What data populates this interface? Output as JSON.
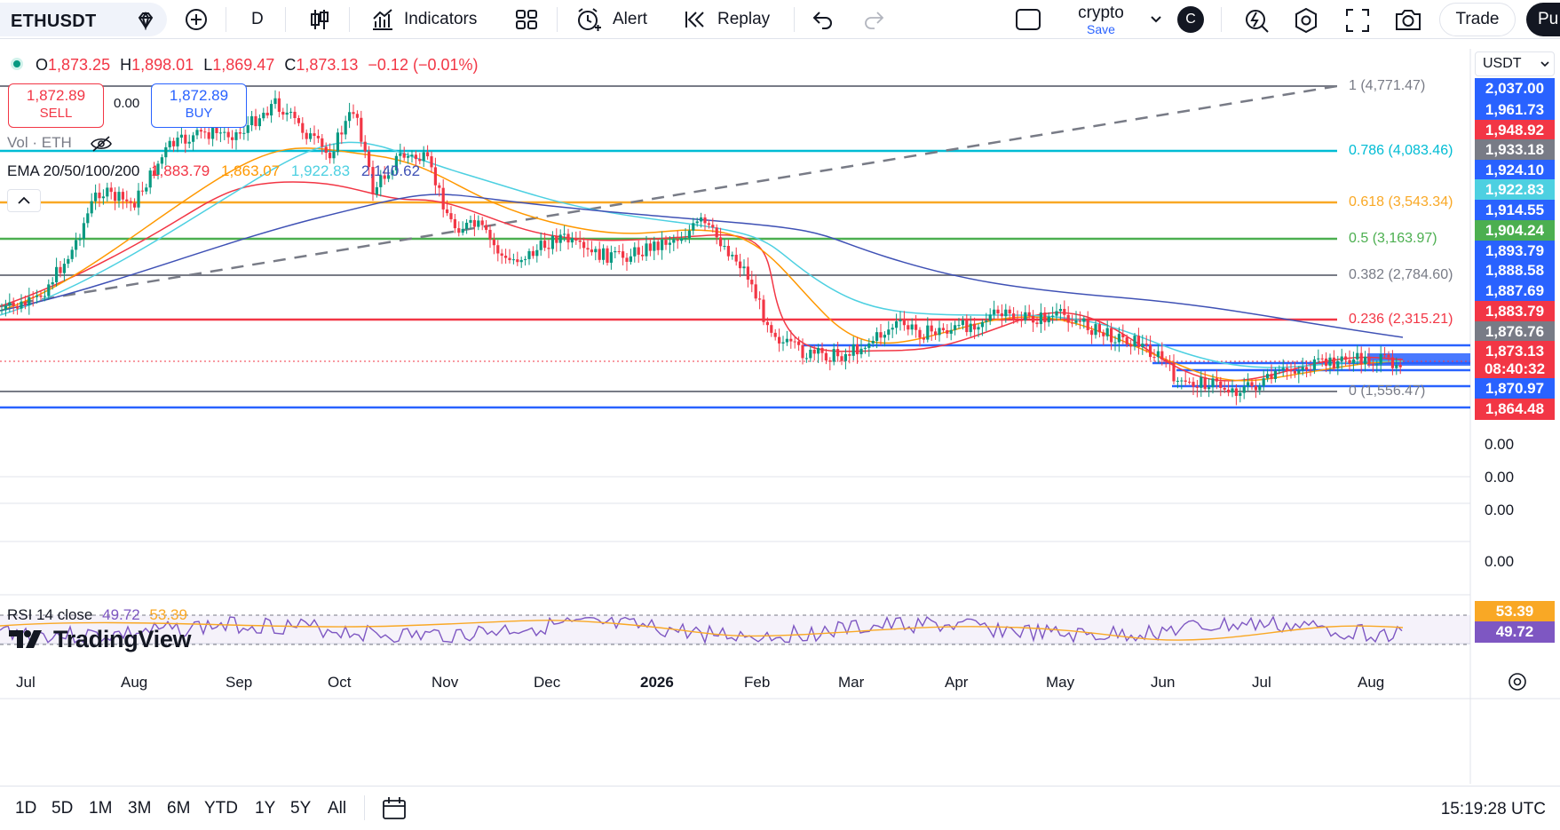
{
  "toolbar": {
    "symbol": "ETHUSDT",
    "interval": "D",
    "indicators_label": "Indicators",
    "alert_label": "Alert",
    "replay_label": "Replay",
    "layout_name": "crypto",
    "layout_save": "Save",
    "avatar_letter": "C",
    "trade_label": "Trade",
    "publish_label": "Pu"
  },
  "legend": {
    "o_key": "O",
    "o_val": "1,873.25",
    "h_key": "H",
    "h_val": "1,898.01",
    "l_key": "L",
    "l_val": "1,869.47",
    "c_key": "C",
    "c_val": "1,873.13",
    "change": "−0.12 (−0.01%)"
  },
  "trade": {
    "sell_price": "1,872.89",
    "sell_label": "SELL",
    "spread": "0.00",
    "buy_price": "1,872.89",
    "buy_label": "BUY"
  },
  "volume_label": "Vol · ETH",
  "ema": {
    "label": "EMA 20/50/100/200",
    "v20": "1,883.79",
    "v50": "1,863.07",
    "v100": "1,922.83",
    "v200": "2,140.62",
    "colors": {
      "v20": "#f23645",
      "v50": "#ff9800",
      "v100": "#4dd0e1",
      "v200": "#3f51b5"
    }
  },
  "currency": "USDT",
  "fib": [
    {
      "label": "1 (4,771.47)",
      "color": "#787b86"
    },
    {
      "label": "0.786 (4,083.46)",
      "color": "#00bcd4"
    },
    {
      "label": "0.618 (3,543.34)",
      "color": "#f9a825"
    },
    {
      "label": "0.5 (3,163.97)",
      "color": "#4caf50"
    },
    {
      "label": "0.382 (2,784.60)",
      "color": "#787b86"
    },
    {
      "label": "0.236 (2,315.21)",
      "color": "#f23645"
    },
    {
      "label": "0 (1,556.47)",
      "color": "#787b86"
    }
  ],
  "price_scale": [
    {
      "v": "2,037.00",
      "bg": "#2962ff"
    },
    {
      "v": "1,961.73",
      "bg": "#2962ff"
    },
    {
      "v": "1,948.92",
      "bg": "#f23645"
    },
    {
      "v": "1,933.18",
      "bg": "#787b86"
    },
    {
      "v": "1,924.10",
      "bg": "#2962ff"
    },
    {
      "v": "1,922.83",
      "bg": "#4dd0e1"
    },
    {
      "v": "1,914.55",
      "bg": "#2962ff"
    },
    {
      "v": "1,904.24",
      "bg": "#4caf50"
    },
    {
      "v": "1,893.79",
      "bg": "#2962ff"
    },
    {
      "v": "1,888.58",
      "bg": "#2962ff"
    },
    {
      "v": "1,887.69",
      "bg": "#2962ff"
    },
    {
      "v": "1,883.79",
      "bg": "#f23645"
    },
    {
      "v": "1,876.76",
      "bg": "#787b86"
    },
    {
      "v": "1,873.13",
      "bg": "#f23645"
    },
    {
      "v": "08:40:32",
      "bg": "#f23645"
    },
    {
      "v": "1,870.97",
      "bg": "#2962ff"
    },
    {
      "v": "1,864.48",
      "bg": "#f23645"
    }
  ],
  "volume_axis": [
    "0.00",
    "0.00",
    "0.00",
    "0.00"
  ],
  "rsi": {
    "label": "RSI 14 close",
    "v1": "49.72",
    "v2": "53.39",
    "badge_top": "53.39",
    "badge_bottom": "49.72"
  },
  "logo_text": "TradingView",
  "time_axis": [
    "Jul",
    "Aug",
    "Sep",
    "Oct",
    "Nov",
    "Dec",
    "2026",
    "Feb",
    "Mar",
    "Apr",
    "May",
    "Jun",
    "Jul",
    "Aug"
  ],
  "ranges": [
    "1D",
    "5D",
    "1M",
    "3M",
    "6M",
    "YTD",
    "1Y",
    "5Y",
    "All"
  ],
  "clock": "15:19:28 UTC"
}
